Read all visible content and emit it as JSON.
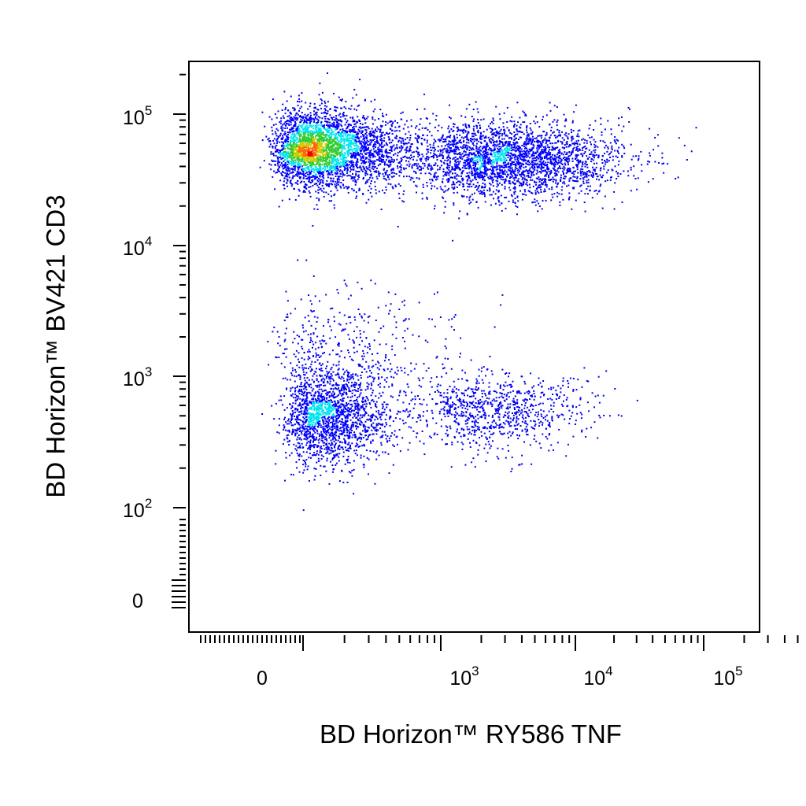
{
  "chart_data": {
    "type": "scatter",
    "title": "",
    "xlabel": "BD Horizon™ RY586 TNF",
    "ylabel": "BD Horizon™ BV421 CD3",
    "x_scale": "biexponential",
    "y_scale": "biexponential",
    "xlim": [
      -300,
      250000
    ],
    "ylim": [
      -50,
      250000
    ],
    "x_tick_labels": [
      {
        "value": 0,
        "base": "0",
        "exp": ""
      },
      {
        "value": 1000,
        "base": "10",
        "exp": "3"
      },
      {
        "value": 10000,
        "base": "10",
        "exp": "4"
      },
      {
        "value": 100000,
        "base": "10",
        "exp": "5"
      }
    ],
    "y_tick_labels": [
      {
        "value": 0,
        "base": "0",
        "exp": ""
      },
      {
        "value": 100,
        "base": "10",
        "exp": "2"
      },
      {
        "value": 1000,
        "base": "10",
        "exp": "3"
      },
      {
        "value": 10000,
        "base": "10",
        "exp": "4"
      },
      {
        "value": 100000,
        "base": "10",
        "exp": "5"
      }
    ],
    "color_scale": "density (blue → cyan → green → yellow → red)",
    "grid": false,
    "legend": "none",
    "populations": [
      {
        "x_center": 230,
        "y_center": 55000,
        "x_spread": 200,
        "y_spread": 25000,
        "weight": 0.34,
        "peak_density": "red"
      },
      {
        "x_center": 3000,
        "y_center": 45000,
        "x_spread": 6000,
        "y_spread": 20000,
        "weight": 0.32,
        "peak_density": "green"
      },
      {
        "x_center": 250,
        "y_center": 500,
        "x_spread": 160,
        "y_spread": 300,
        "weight": 0.2,
        "peak_density": "green"
      },
      {
        "x_center": 2500,
        "y_center": 550,
        "x_spread": 3500,
        "y_spread": 250,
        "weight": 0.1,
        "peak_density": "blue"
      },
      {
        "x_center": 300,
        "y_center": 1800,
        "x_spread": 400,
        "y_spread": 1500,
        "weight": 0.04,
        "peak_density": "blue"
      }
    ]
  }
}
